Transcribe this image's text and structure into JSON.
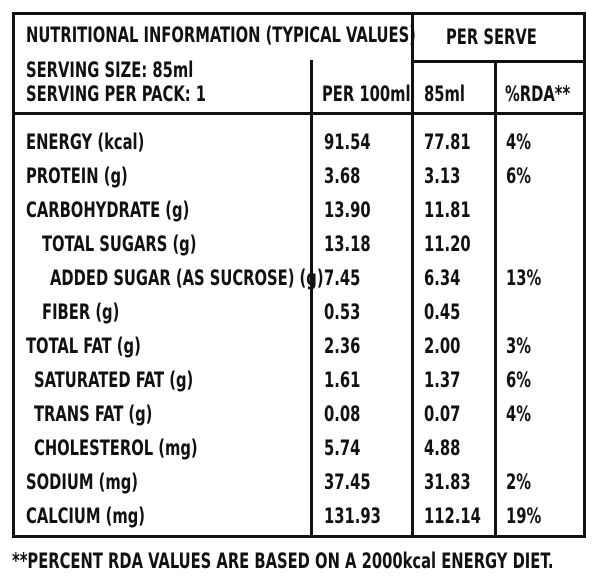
{
  "header": {
    "title": "NUTRITIONAL INFORMATION (TYPICAL VALUES)",
    "per_serve": "PER SERVE",
    "serving_size": "SERVING SIZE: 85ml",
    "servings_per_pack": "SERVING PER PACK: 1",
    "col_per100": "PER 100ml",
    "col_85": "85ml",
    "col_rda": "%RDA**"
  },
  "rows": [
    {
      "label": "ENERGY (kcal)",
      "per100": "91.54",
      "per85": "77.81",
      "rda": "4%"
    },
    {
      "label": "PROTEIN (g)",
      "per100": "3.68",
      "per85": "3.13",
      "rda": "6%"
    },
    {
      "label": "CARBOHYDRATE (g)",
      "per100": "13.90",
      "per85": "11.81",
      "rda": ""
    },
    {
      "label": "TOTAL SUGARS (g)",
      "per100": "13.18",
      "per85": "11.20",
      "rda": ""
    },
    {
      "label": "ADDED SUGAR (AS SUCROSE) (g)",
      "per100": "7.45",
      "per85": "6.34",
      "rda": "13%"
    },
    {
      "label": "FIBER (g)",
      "per100": "0.53",
      "per85": "0.45",
      "rda": ""
    },
    {
      "label": "TOTAL FAT (g)",
      "per100": "2.36",
      "per85": "2.00",
      "rda": "3%"
    },
    {
      "label": "SATURATED FAT (g)",
      "per100": "1.61",
      "per85": "1.37",
      "rda": "6%"
    },
    {
      "label": "TRANS FAT (g)",
      "per100": "0.08",
      "per85": "0.07",
      "rda": "4%"
    },
    {
      "label": "CHOLESTEROL (mg)",
      "per100": "5.74",
      "per85": "4.88",
      "rda": ""
    },
    {
      "label": "SODIUM (mg)",
      "per100": "37.45",
      "per85": "31.83",
      "rda": "2%"
    },
    {
      "label": "CALCIUM (mg)",
      "per100": "131.93",
      "per85": "112.14",
      "rda": "19%"
    }
  ],
  "footnote": "**PERCENT RDA VALUES ARE BASED ON A 2000kcal ENERGY DIET."
}
